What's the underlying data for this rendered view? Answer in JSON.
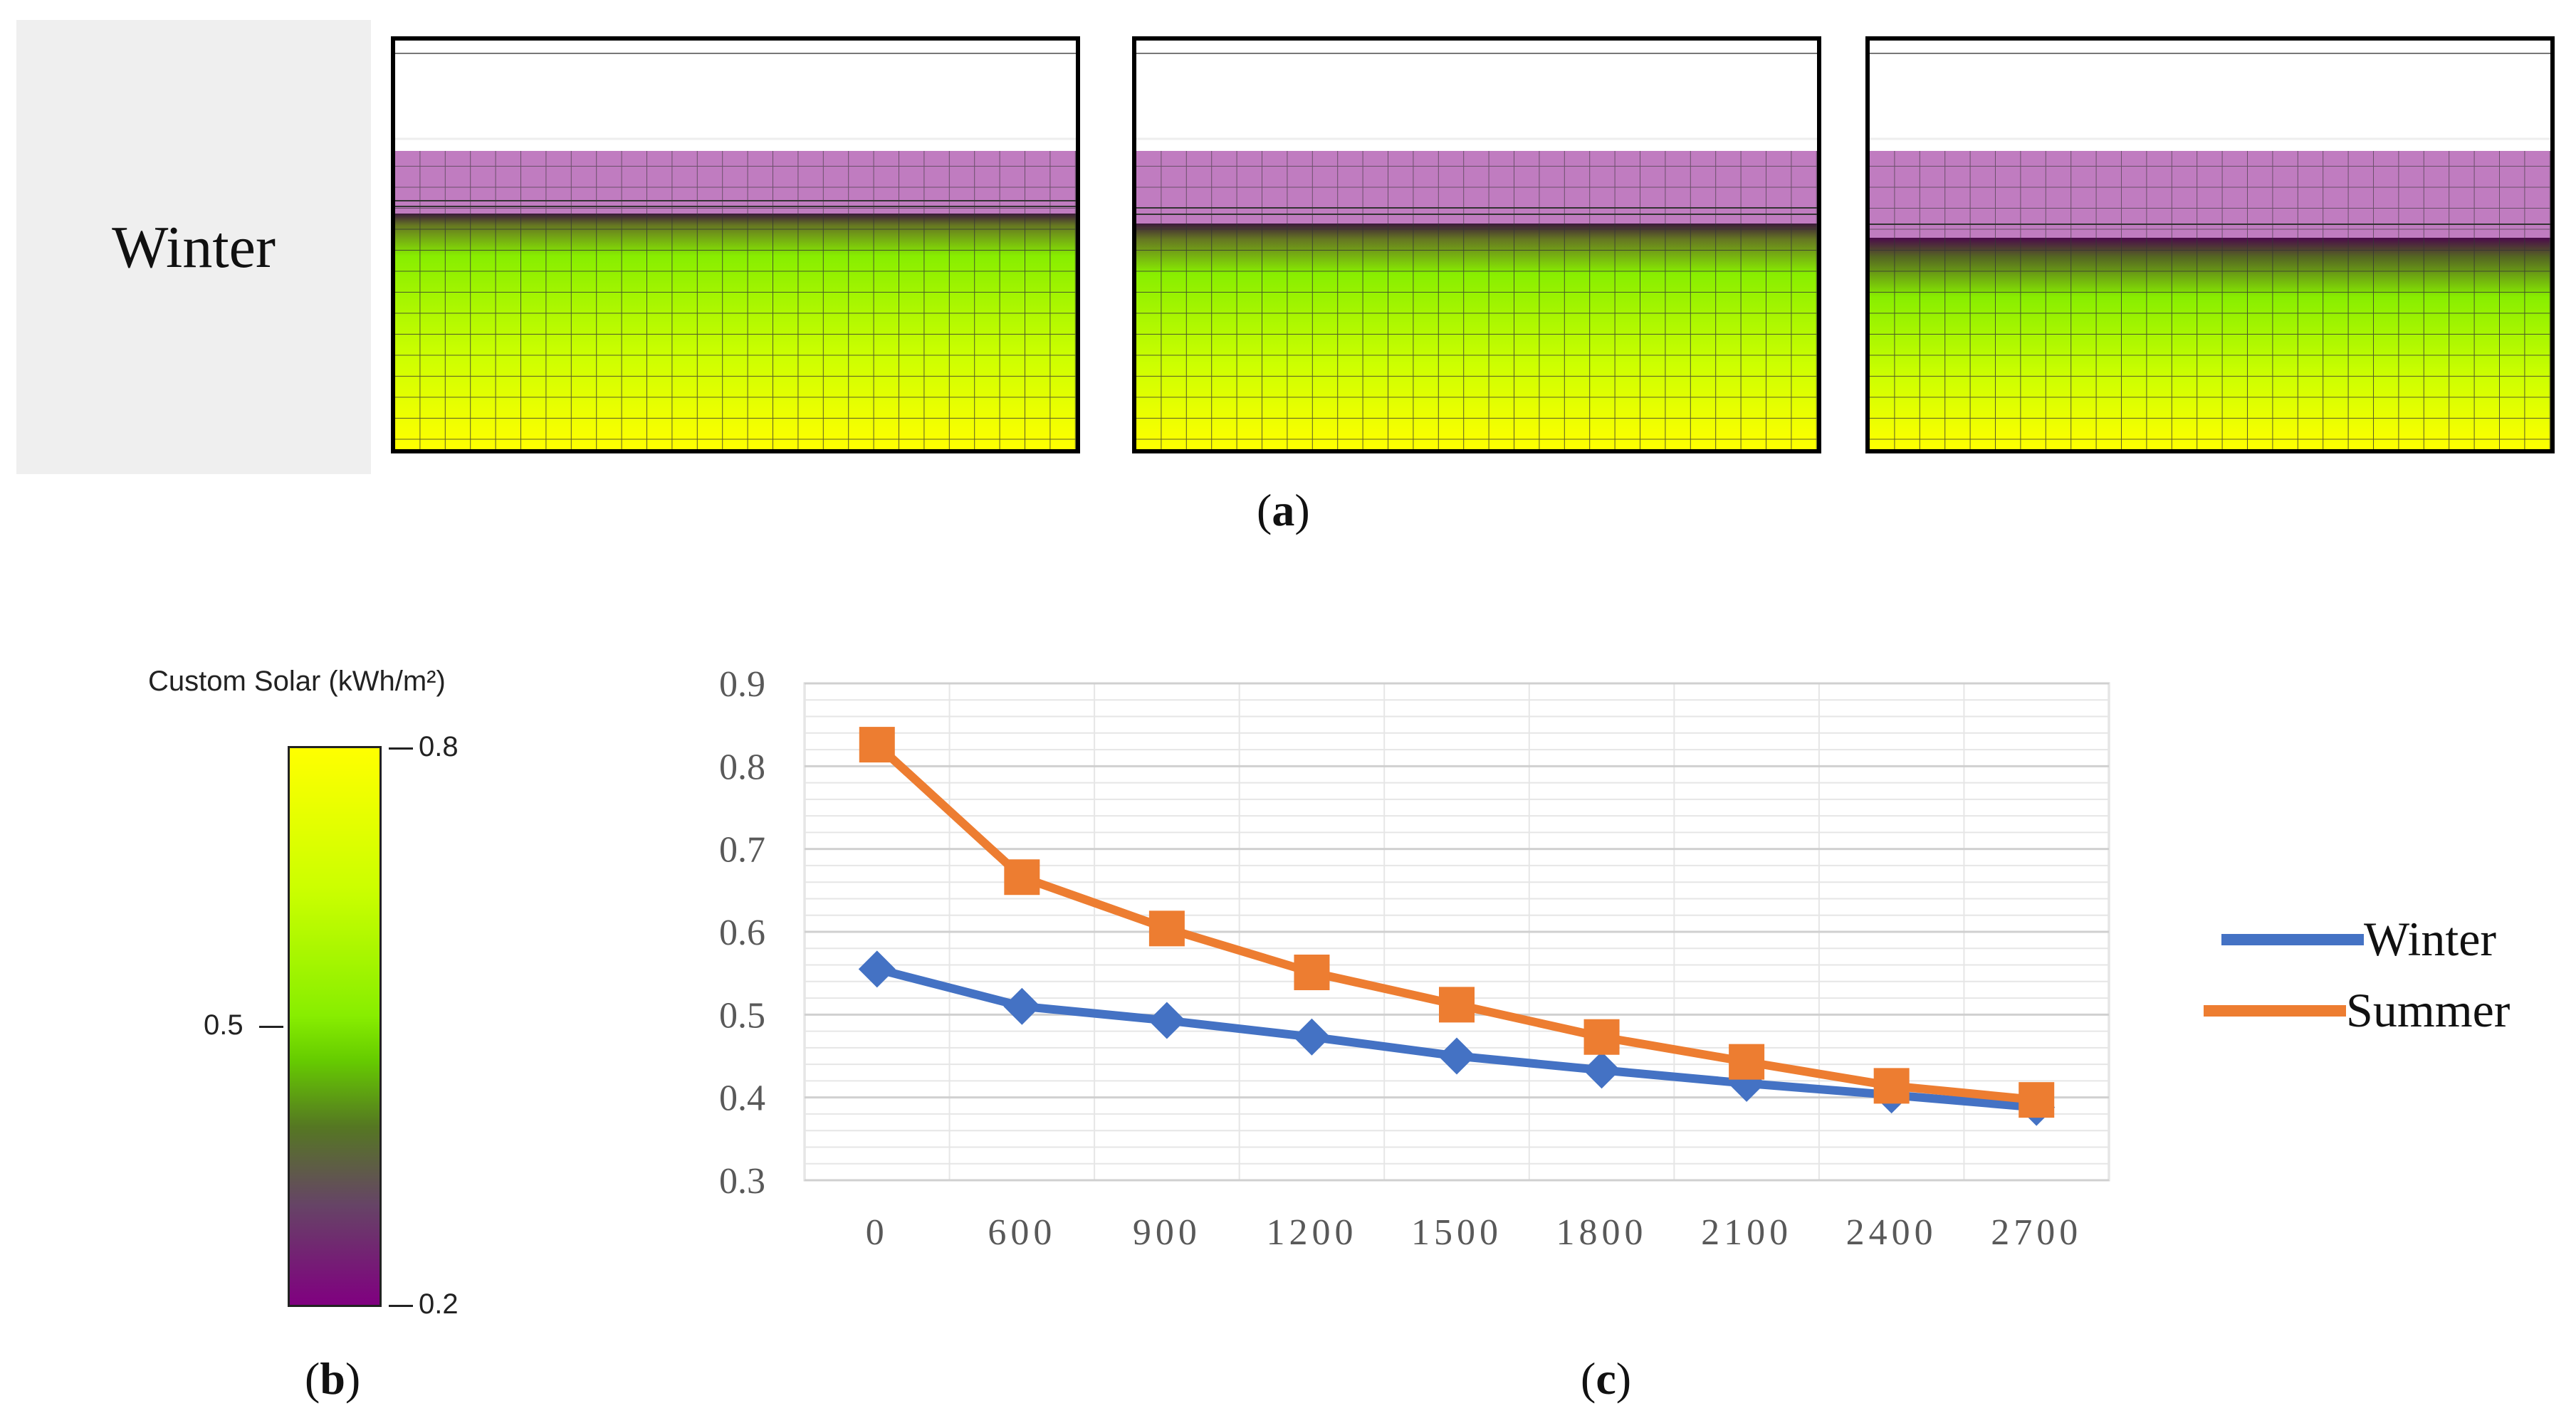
{
  "panel_a": {
    "row_label": "Winter",
    "caption": "a"
  },
  "panel_b": {
    "title": "Custom Solar (kWh/m²)",
    "max_label": "0.8",
    "mid_label": "0.5",
    "min_label": "0.2",
    "caption": "b",
    "colors": {
      "high": "#ffff00",
      "mid": "#88ee00",
      "low": "#800080"
    }
  },
  "panel_c": {
    "caption": "c"
  },
  "chart_data": {
    "type": "line",
    "categories": [
      "0",
      "600",
      "900",
      "1200",
      "1500",
      "1800",
      "2100",
      "2400",
      "2700"
    ],
    "ylim": [
      0.3,
      0.9
    ],
    "yticks": [
      "0.3",
      "0.4",
      "0.5",
      "0.6",
      "0.7",
      "0.8",
      "0.9"
    ],
    "grid": true,
    "legend_position": "right",
    "series": [
      {
        "name": "Winter",
        "color": "#4472c4",
        "marker": "diamond",
        "values": [
          0.555,
          0.51,
          0.493,
          0.473,
          0.45,
          0.433,
          0.417,
          0.403,
          0.388
        ]
      },
      {
        "name": "Summer",
        "color": "#ed7d31",
        "marker": "square",
        "values": [
          0.826,
          0.666,
          0.604,
          0.551,
          0.512,
          0.473,
          0.443,
          0.414,
          0.397
        ]
      }
    ]
  }
}
